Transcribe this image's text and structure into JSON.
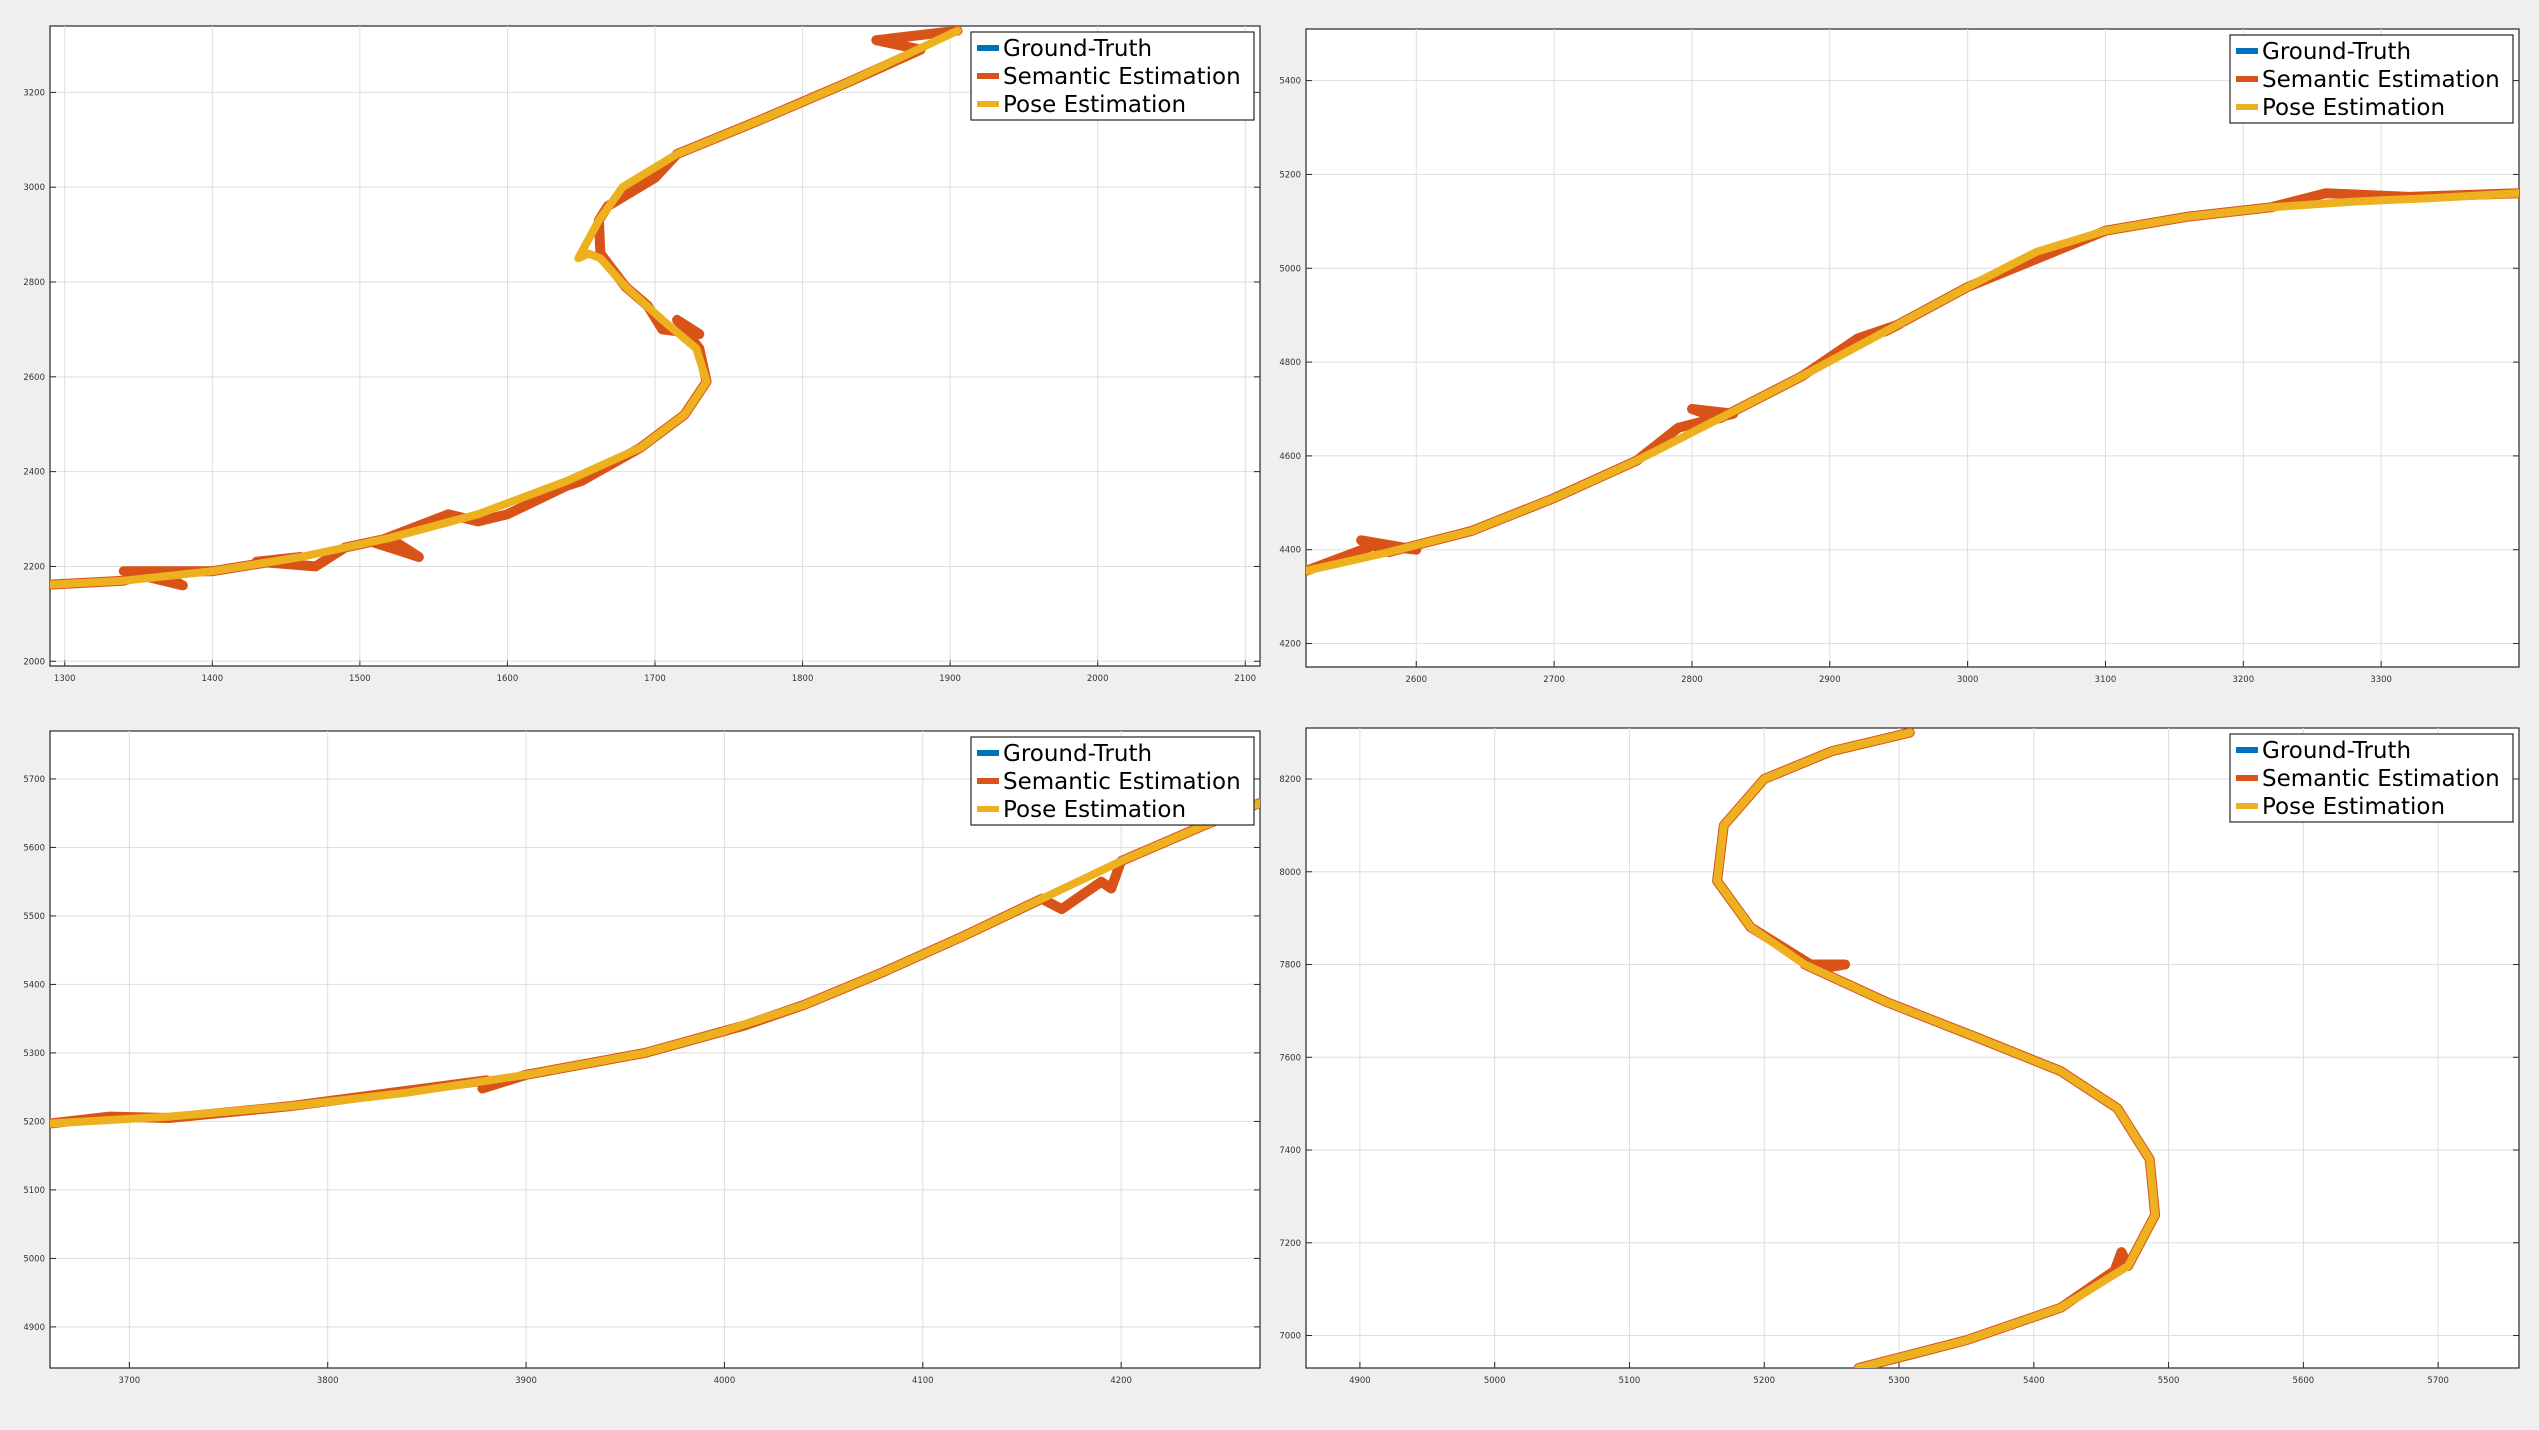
{
  "chart_data": [
    {
      "type": "line",
      "title": "",
      "xlabel": "",
      "ylabel": "",
      "xlim": [
        1290,
        2110
      ],
      "ylim": [
        1990,
        3340
      ],
      "xticks": [
        1300,
        1400,
        1500,
        1600,
        1700,
        1800,
        1900,
        2000,
        2100
      ],
      "yticks": [
        2000,
        2200,
        2400,
        2600,
        2800,
        3000,
        3200
      ],
      "grid": true,
      "legend_position": "top-right",
      "series": [
        {
          "name": "Ground-Truth",
          "color": "#0072bd",
          "x": [
            1280,
            1340,
            1400,
            1460,
            1520,
            1580,
            1640,
            1690,
            1720,
            1735,
            1728,
            1705,
            1680,
            1663,
            1662,
            1678,
            1715,
            1770,
            1830,
            1905
          ],
          "y": [
            2160,
            2170,
            2190,
            2220,
            2260,
            2310,
            2380,
            2450,
            2520,
            2590,
            2660,
            2720,
            2790,
            2860,
            2930,
            3000,
            3070,
            3140,
            3220,
            3330
          ]
        },
        {
          "name": "Semantic Estimation",
          "color": "#d95319",
          "x": [
            1280,
            1340,
            1360,
            1380,
            1340,
            1400,
            1460,
            1430,
            1470,
            1490,
            1520,
            1540,
            1510,
            1560,
            1580,
            1600,
            1640,
            1650,
            1690,
            1720,
            1735,
            1730,
            1715,
            1730,
            1705,
            1695,
            1680,
            1663,
            1662,
            1668,
            1700,
            1715,
            1770,
            1830,
            1880,
            1850,
            1905
          ],
          "y": [
            2160,
            2170,
            2190,
            2160,
            2190,
            2190,
            2220,
            2210,
            2200,
            2240,
            2260,
            2220,
            2250,
            2310,
            2295,
            2310,
            2370,
            2380,
            2450,
            2520,
            2590,
            2660,
            2720,
            2690,
            2700,
            2750,
            2790,
            2860,
            2930,
            2960,
            3020,
            3070,
            3140,
            3220,
            3290,
            3310,
            3330
          ]
        },
        {
          "name": "Pose Estimation",
          "color": "#edb120",
          "x": [
            1280,
            1340,
            1400,
            1460,
            1520,
            1580,
            1640,
            1690,
            1720,
            1735,
            1728,
            1705,
            1680,
            1663,
            1655,
            1648,
            1662,
            1678,
            1715,
            1770,
            1830,
            1905
          ],
          "y": [
            2160,
            2170,
            2190,
            2220,
            2260,
            2310,
            2380,
            2450,
            2520,
            2590,
            2660,
            2720,
            2790,
            2850,
            2860,
            2850,
            2930,
            3000,
            3070,
            3140,
            3220,
            3330
          ]
        }
      ]
    },
    {
      "type": "line",
      "title": "",
      "xlabel": "",
      "ylabel": "",
      "xlim": [
        2520,
        3400
      ],
      "ylim": [
        4150,
        5510
      ],
      "xticks": [
        2600,
        2700,
        2800,
        2900,
        3000,
        3100,
        3200,
        3300
      ],
      "yticks": [
        4200,
        4400,
        4600,
        4800,
        5000,
        5200,
        5400
      ],
      "grid": true,
      "legend_position": "top-right",
      "series": [
        {
          "name": "Ground-Truth",
          "color": "#0072bd",
          "x": [
            2520,
            2580,
            2640,
            2700,
            2760,
            2820,
            2880,
            2940,
            3000,
            3050,
            3100,
            3160,
            3220,
            3280,
            3340,
            3400
          ],
          "y": [
            4355,
            4395,
            4440,
            4510,
            4590,
            4680,
            4770,
            4865,
            4960,
            5035,
            5080,
            5110,
            5130,
            5142,
            5150,
            5160
          ]
        },
        {
          "name": "Semantic Estimation",
          "color": "#d95319",
          "x": [
            2520,
            2570,
            2600,
            2560,
            2580,
            2640,
            2700,
            2760,
            2790,
            2830,
            2800,
            2820,
            2880,
            2920,
            2950,
            2940,
            3000,
            3100,
            3160,
            3220,
            3260,
            3320,
            3400
          ],
          "y": [
            4355,
            4410,
            4400,
            4420,
            4395,
            4440,
            4510,
            4590,
            4660,
            4690,
            4700,
            4680,
            4770,
            4850,
            4880,
            4865,
            4960,
            5080,
            5110,
            5130,
            5160,
            5152,
            5160
          ]
        },
        {
          "name": "Pose Estimation",
          "color": "#edb120",
          "x": [
            2520,
            2580,
            2640,
            2700,
            2760,
            2820,
            2880,
            2940,
            3000,
            3050,
            3100,
            3160,
            3220,
            3280,
            3340,
            3400
          ],
          "y": [
            4355,
            4395,
            4440,
            4510,
            4590,
            4680,
            4770,
            4865,
            4960,
            5035,
            5080,
            5110,
            5130,
            5142,
            5150,
            5160
          ]
        }
      ]
    },
    {
      "type": "line",
      "title": "",
      "xlabel": "",
      "ylabel": "",
      "xlim": [
        3660,
        4270
      ],
      "ylim": [
        4840,
        5770
      ],
      "xticks": [
        3700,
        3800,
        3900,
        4000,
        4100,
        4200
      ],
      "yticks": [
        4900,
        5000,
        5100,
        5200,
        5300,
        5400,
        5500,
        5600,
        5700
      ],
      "grid": true,
      "legend_position": "top-right",
      "series": [
        {
          "name": "Ground-Truth",
          "color": "#0072bd",
          "x": [
            3660,
            3720,
            3780,
            3840,
            3900,
            3960,
            4000,
            4040,
            4080,
            4120,
            4160,
            4200,
            4240,
            4270
          ],
          "y": [
            5197,
            5207,
            5222,
            5242,
            5268,
            5300,
            5332,
            5370,
            5418,
            5470,
            5525,
            5580,
            5630,
            5665
          ]
        },
        {
          "name": "Semantic Estimation",
          "color": "#d95319",
          "x": [
            3660,
            3690,
            3720,
            3780,
            3880,
            3878,
            3900,
            3960,
            4000,
            4010,
            4040,
            4080,
            4120,
            4160,
            4170,
            4190,
            4195,
            4200,
            4240,
            4270
          ],
          "y": [
            5197,
            5207,
            5205,
            5222,
            5260,
            5248,
            5268,
            5300,
            5332,
            5340,
            5370,
            5418,
            5470,
            5525,
            5510,
            5550,
            5540,
            5580,
            5630,
            5665
          ]
        },
        {
          "name": "Pose Estimation",
          "color": "#edb120",
          "x": [
            3660,
            3720,
            3780,
            3840,
            3900,
            3960,
            4000,
            4040,
            4080,
            4120,
            4160,
            4200,
            4240,
            4270
          ],
          "y": [
            5197,
            5207,
            5222,
            5242,
            5268,
            5300,
            5332,
            5370,
            5418,
            5470,
            5525,
            5580,
            5630,
            5665
          ]
        }
      ]
    },
    {
      "type": "line",
      "title": "",
      "xlabel": "",
      "ylabel": "",
      "xlim": [
        4860,
        5760
      ],
      "ylim": [
        6930,
        8310
      ],
      "xticks": [
        4900,
        5000,
        5100,
        5200,
        5300,
        5400,
        5500,
        5600,
        5700
      ],
      "yticks": [
        7000,
        7200,
        7400,
        7600,
        7800,
        8000,
        8200
      ],
      "grid": true,
      "legend_position": "top-right",
      "series": [
        {
          "name": "Ground-Truth",
          "color": "#0072bd",
          "x": [
            5270,
            5350,
            5420,
            5470,
            5490,
            5486,
            5462,
            5420,
            5360,
            5290,
            5230,
            5190,
            5165,
            5170,
            5200,
            5250,
            5308
          ],
          "y": [
            6930,
            6990,
            7060,
            7150,
            7260,
            7380,
            7490,
            7570,
            7640,
            7720,
            7800,
            7880,
            7980,
            8100,
            8200,
            8260,
            8300
          ]
        },
        {
          "name": "Semantic Estimation",
          "color": "#d95319",
          "x": [
            5270,
            5350,
            5420,
            5460,
            5465,
            5470,
            5490,
            5486,
            5462,
            5420,
            5360,
            5290,
            5230,
            5260,
            5240,
            5190,
            5165,
            5170,
            5200,
            5250,
            5308
          ],
          "y": [
            6930,
            6990,
            7060,
            7140,
            7180,
            7150,
            7260,
            7380,
            7490,
            7570,
            7640,
            7720,
            7800,
            7800,
            7790,
            7880,
            7980,
            8100,
            8200,
            8260,
            8300
          ]
        },
        {
          "name": "Pose Estimation",
          "color": "#edb120",
          "x": [
            5270,
            5350,
            5420,
            5470,
            5490,
            5486,
            5462,
            5420,
            5360,
            5290,
            5230,
            5190,
            5165,
            5170,
            5200,
            5250,
            5308
          ],
          "y": [
            6930,
            6990,
            7060,
            7150,
            7260,
            7380,
            7490,
            7570,
            7640,
            7720,
            7800,
            7880,
            7980,
            8100,
            8200,
            8260,
            8300
          ]
        }
      ]
    }
  ]
}
